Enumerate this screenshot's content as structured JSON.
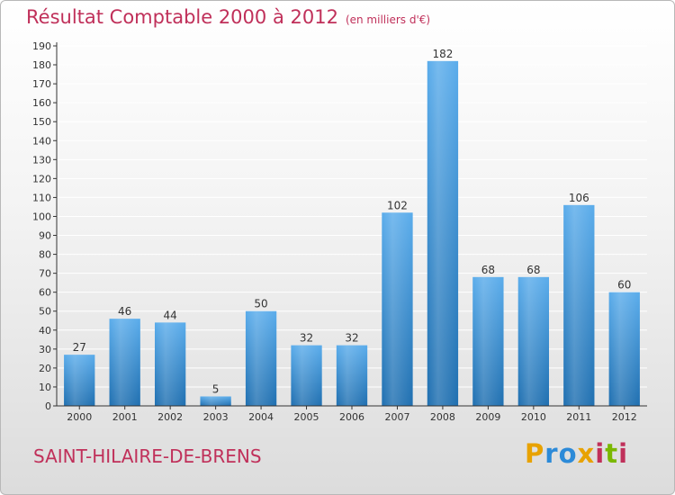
{
  "page": {
    "title": "Résultat Comptable 2000 à 2012",
    "subtitle": "(en milliers d'€)",
    "commune": "SAINT-HILAIRE-DE-BRENS",
    "logo_text": "Proxiti",
    "logo_colors": [
      "#e8a200",
      "#2c8ad8",
      "#2c8ad8",
      "#e8a200",
      "#c0305a",
      "#7ab800",
      "#c0305a"
    ]
  },
  "colors": {
    "bar_top": "#5aaceb",
    "bar_bottom": "#1f6fb0",
    "title": "#c0305a",
    "axis": "#333333",
    "grid": "#ffffff"
  },
  "chart_data": {
    "type": "bar",
    "title": "Résultat Comptable 2000 à 2012",
    "subtitle": "(en milliers d'€)",
    "categories": [
      "2000",
      "2001",
      "2002",
      "2003",
      "2004",
      "2005",
      "2006",
      "2007",
      "2008",
      "2009",
      "2010",
      "2011",
      "2012"
    ],
    "values": [
      27,
      46,
      44,
      5,
      50,
      32,
      32,
      102,
      182,
      68,
      68,
      106,
      60
    ],
    "ylim": [
      0,
      190
    ],
    "ytick_step": 10,
    "grid": true,
    "legend": "none"
  }
}
